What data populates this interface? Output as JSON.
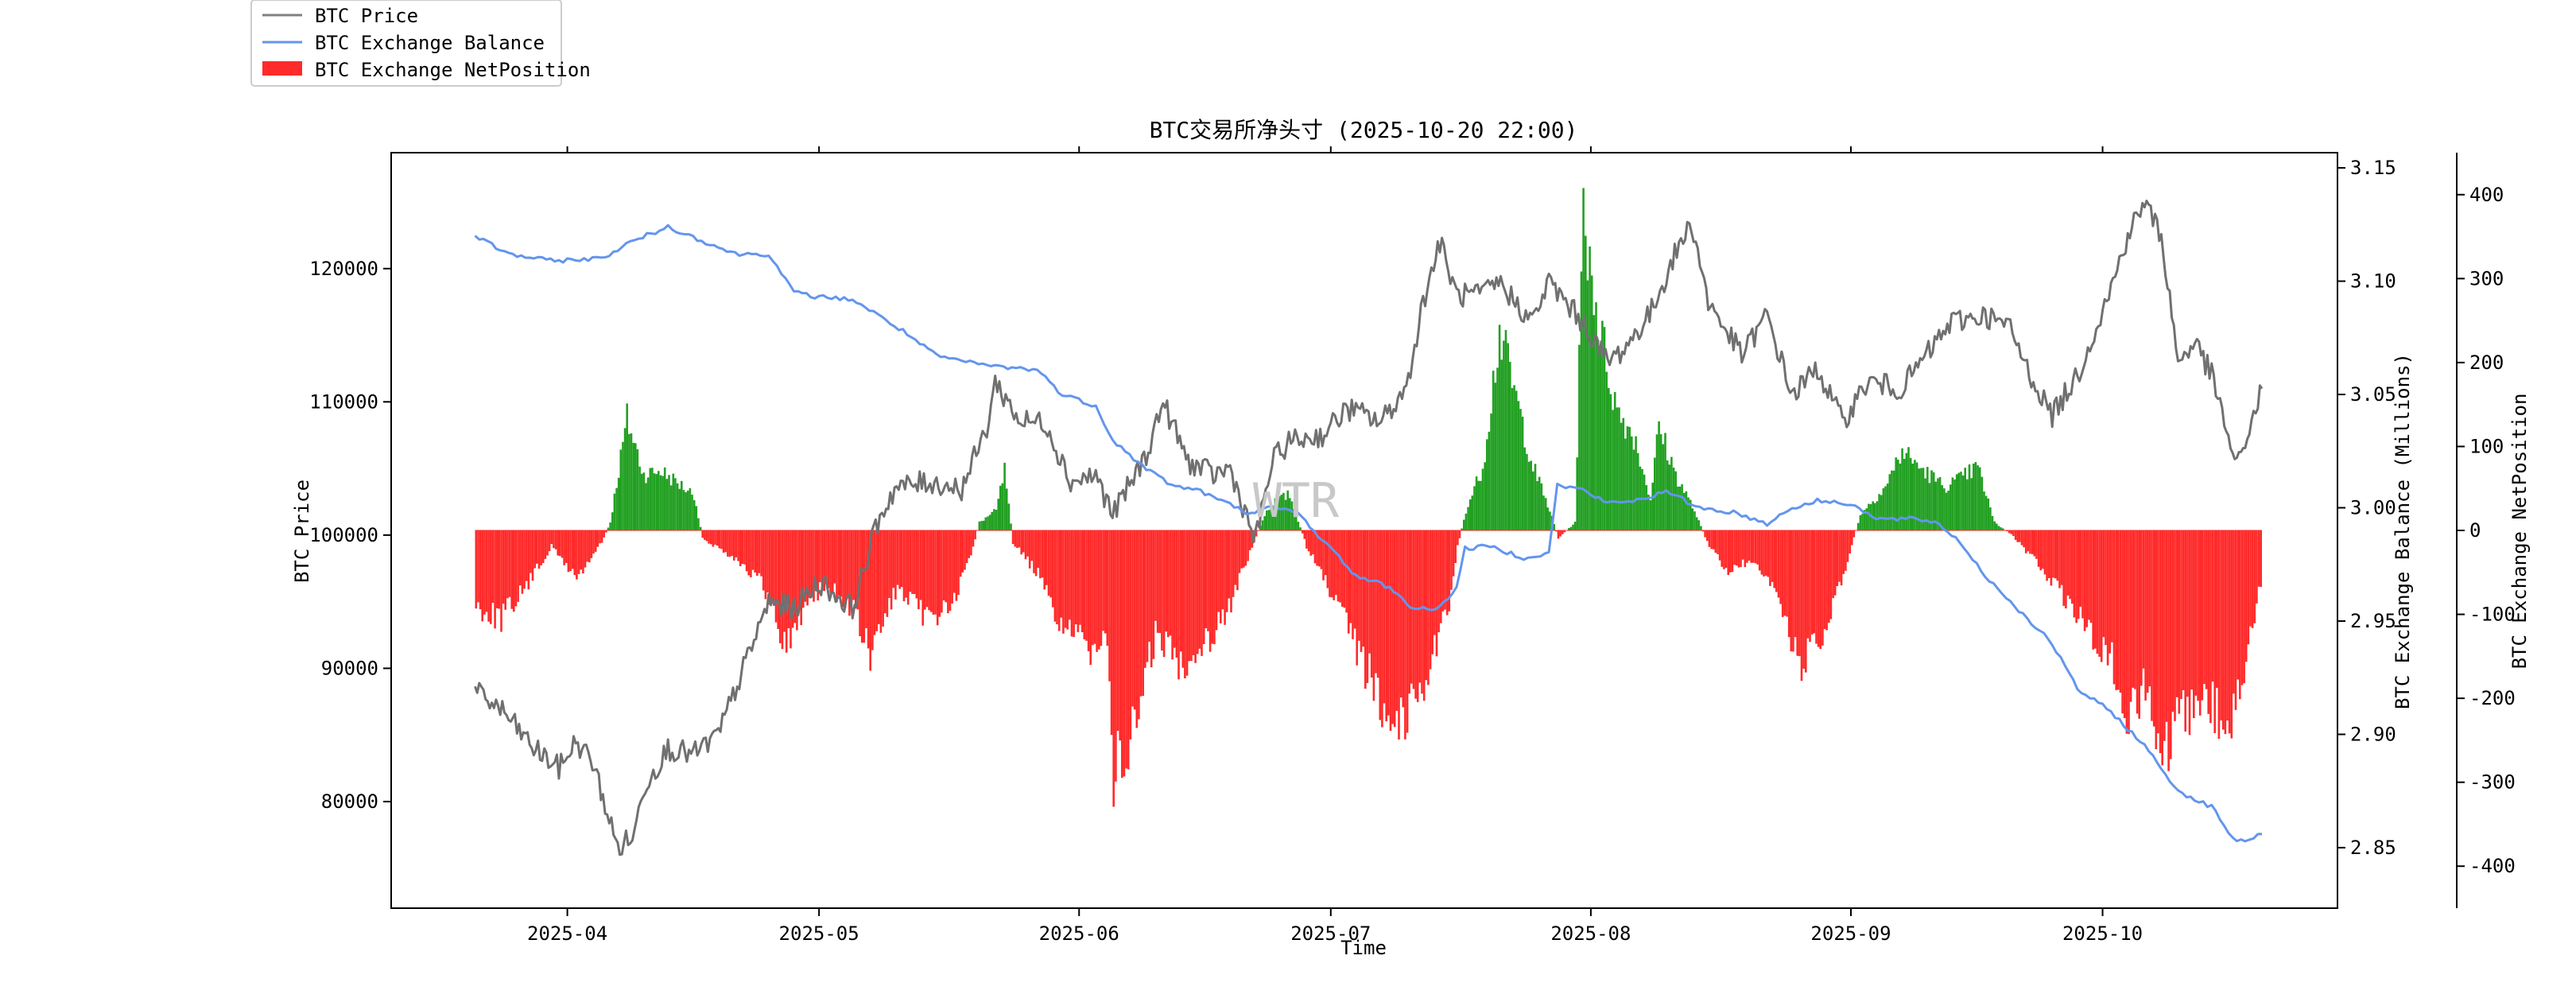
{
  "chart_data": {
    "type": "line",
    "title": "BTC交易所净头寸 (2025-10-20 22:00)",
    "xlabel": "Time",
    "ylabel_left": "BTC Price",
    "ylabel_right": "BTC Exchange Balance (Millions)",
    "ylabel_far_right": "BTC Exchange NetPosition",
    "watermark": "WTR",
    "grid": false,
    "legend_position": "top-left (outside plot)",
    "legend": [
      {
        "label": "BTC Price",
        "color": "#808080",
        "kind": "line"
      },
      {
        "label": "BTC Exchange Balance",
        "color": "#6495ed",
        "kind": "line"
      },
      {
        "label": "BTC Exchange NetPosition",
        "color": "#ff2a2a",
        "kind": "bar"
      }
    ],
    "x_ticks": [
      "2025-04",
      "2025-05",
      "2025-06",
      "2025-07",
      "2025-08",
      "2025-09",
      "2025-10"
    ],
    "x_tick_dates": [
      "2025-04-01",
      "2025-05-01",
      "2025-06-01",
      "2025-07-01",
      "2025-08-01",
      "2025-09-01",
      "2025-10-01"
    ],
    "xlim": [
      "2025-03-11",
      "2025-10-29"
    ],
    "y_left": {
      "lim": [
        72000,
        128700
      ],
      "ticks": [
        80000,
        90000,
        100000,
        110000,
        120000
      ]
    },
    "y_right": {
      "lim": [
        2.8233,
        3.1567
      ],
      "ticks": [
        2.85,
        2.9,
        2.95,
        3.0,
        3.05,
        3.1,
        3.15
      ],
      "tick_labels": [
        "2.85",
        "2.90",
        "2.95",
        "3.00",
        "3.05",
        "3.10",
        "3.15"
      ]
    },
    "y_far_right": {
      "lim": [
        -450,
        450
      ],
      "ticks": [
        -400,
        -300,
        -200,
        -100,
        0,
        100,
        200,
        300,
        400
      ]
    },
    "series": [
      {
        "name": "BTC Price",
        "axis": "left",
        "color": "#808080",
        "points": [
          [
            "2025-03-21",
            88200
          ],
          [
            "2025-03-24",
            87000
          ],
          [
            "2025-03-28",
            84000
          ],
          [
            "2025-03-31",
            82500
          ],
          [
            "2025-04-02",
            84500
          ],
          [
            "2025-04-04",
            83000
          ],
          [
            "2025-04-07",
            76500
          ],
          [
            "2025-04-09",
            77500
          ],
          [
            "2025-04-10",
            81000
          ],
          [
            "2025-04-13",
            84000
          ],
          [
            "2025-04-16",
            83500
          ],
          [
            "2025-04-19",
            85000
          ],
          [
            "2025-04-22",
            90000
          ],
          [
            "2025-04-25",
            95000
          ],
          [
            "2025-04-28",
            94500
          ],
          [
            "2025-05-01",
            96500
          ],
          [
            "2025-05-05",
            94500
          ],
          [
            "2025-05-08",
            101000
          ],
          [
            "2025-05-10",
            103500
          ],
          [
            "2025-05-14",
            104000
          ],
          [
            "2025-05-18",
            103500
          ],
          [
            "2025-05-21",
            108000
          ],
          [
            "2025-05-22",
            111500
          ],
          [
            "2025-05-25",
            108500
          ],
          [
            "2025-05-28",
            108500
          ],
          [
            "2025-05-31",
            104000
          ],
          [
            "2025-06-03",
            104500
          ],
          [
            "2025-06-05",
            101500
          ],
          [
            "2025-06-09",
            106000
          ],
          [
            "2025-06-11",
            110000
          ],
          [
            "2025-06-14",
            105500
          ],
          [
            "2025-06-17",
            104500
          ],
          [
            "2025-06-19",
            105000
          ],
          [
            "2025-06-22",
            99500
          ],
          [
            "2025-06-24",
            105500
          ],
          [
            "2025-06-26",
            107000
          ],
          [
            "2025-06-30",
            107500
          ],
          [
            "2025-07-03",
            109500
          ],
          [
            "2025-07-07",
            108500
          ],
          [
            "2025-07-10",
            111000
          ],
          [
            "2025-07-12",
            117500
          ],
          [
            "2025-07-14",
            122000
          ],
          [
            "2025-07-16",
            118000
          ],
          [
            "2025-07-19",
            118000
          ],
          [
            "2025-07-21",
            119000
          ],
          [
            "2025-07-25",
            116000
          ],
          [
            "2025-07-27",
            119000
          ],
          [
            "2025-07-31",
            116000
          ],
          [
            "2025-08-03",
            113000
          ],
          [
            "2025-08-05",
            114000
          ],
          [
            "2025-08-08",
            116500
          ],
          [
            "2025-08-11",
            121000
          ],
          [
            "2025-08-13",
            123500
          ],
          [
            "2025-08-15",
            117500
          ],
          [
            "2025-08-19",
            113500
          ],
          [
            "2025-08-22",
            116500
          ],
          [
            "2025-08-25",
            110500
          ],
          [
            "2025-08-28",
            112500
          ],
          [
            "2025-08-31",
            108500
          ],
          [
            "2025-09-03",
            111500
          ],
          [
            "2025-09-07",
            111000
          ],
          [
            "2025-09-10",
            113500
          ],
          [
            "2025-09-13",
            116000
          ],
          [
            "2025-09-17",
            116500
          ],
          [
            "2025-09-20",
            115500
          ],
          [
            "2025-09-22",
            112500
          ],
          [
            "2025-09-25",
            109000
          ],
          [
            "2025-09-28",
            112000
          ],
          [
            "2025-10-02",
            118500
          ],
          [
            "2025-10-04",
            122500
          ],
          [
            "2025-10-06",
            125000
          ],
          [
            "2025-10-08",
            122500
          ],
          [
            "2025-10-10",
            113000
          ],
          [
            "2025-10-12",
            114500
          ],
          [
            "2025-10-14",
            112000
          ],
          [
            "2025-10-17",
            105000
          ],
          [
            "2025-10-18",
            107000
          ],
          [
            "2025-10-20",
            111000
          ]
        ]
      },
      {
        "name": "BTC Exchange Balance",
        "axis": "right",
        "color": "#6495ed",
        "points": [
          [
            "2025-03-21",
            3.12
          ],
          [
            "2025-03-25",
            3.112
          ],
          [
            "2025-03-30",
            3.109
          ],
          [
            "2025-04-05",
            3.11
          ],
          [
            "2025-04-09",
            3.118
          ],
          [
            "2025-04-13",
            3.124
          ],
          [
            "2025-04-17",
            3.118
          ],
          [
            "2025-04-21",
            3.112
          ],
          [
            "2025-04-25",
            3.112
          ],
          [
            "2025-04-28",
            3.095
          ],
          [
            "2025-05-01",
            3.093
          ],
          [
            "2025-05-05",
            3.092
          ],
          [
            "2025-05-08",
            3.085
          ],
          [
            "2025-05-11",
            3.078
          ],
          [
            "2025-05-15",
            3.067
          ],
          [
            "2025-05-19",
            3.064
          ],
          [
            "2025-05-23",
            3.062
          ],
          [
            "2025-05-27",
            3.061
          ],
          [
            "2025-05-30",
            3.05
          ],
          [
            "2025-06-03",
            3.045
          ],
          [
            "2025-06-05",
            3.03
          ],
          [
            "2025-06-08",
            3.02
          ],
          [
            "2025-06-12",
            3.01
          ],
          [
            "2025-06-15",
            3.008
          ],
          [
            "2025-06-18",
            3.003
          ],
          [
            "2025-06-21",
            2.998
          ],
          [
            "2025-06-24",
            3.0
          ],
          [
            "2025-06-27",
            2.998
          ],
          [
            "2025-07-01",
            2.982
          ],
          [
            "2025-07-04",
            2.97
          ],
          [
            "2025-07-08",
            2.965
          ],
          [
            "2025-07-11",
            2.955
          ],
          [
            "2025-07-14",
            2.956
          ],
          [
            "2025-07-16",
            2.965
          ],
          [
            "2025-07-17",
            2.982
          ],
          [
            "2025-07-20",
            2.983
          ],
          [
            "2025-07-24",
            2.978
          ],
          [
            "2025-07-27",
            2.98
          ],
          [
            "2025-07-28",
            3.01
          ],
          [
            "2025-07-31",
            3.008
          ],
          [
            "2025-08-03",
            3.002
          ],
          [
            "2025-08-06",
            3.003
          ],
          [
            "2025-08-10",
            3.007
          ],
          [
            "2025-08-14",
            3.0
          ],
          [
            "2025-08-18",
            2.998
          ],
          [
            "2025-08-22",
            2.993
          ],
          [
            "2025-08-25",
            3.0
          ],
          [
            "2025-08-28",
            3.003
          ],
          [
            "2025-09-01",
            3.002
          ],
          [
            "2025-09-04",
            2.995
          ],
          [
            "2025-09-08",
            2.995
          ],
          [
            "2025-09-11",
            2.994
          ],
          [
            "2025-09-14",
            2.985
          ],
          [
            "2025-09-17",
            2.97
          ],
          [
            "2025-09-21",
            2.955
          ],
          [
            "2025-09-25",
            2.94
          ],
          [
            "2025-09-28",
            2.92
          ],
          [
            "2025-10-02",
            2.91
          ],
          [
            "2025-10-06",
            2.895
          ],
          [
            "2025-10-10",
            2.875
          ],
          [
            "2025-10-14",
            2.868
          ],
          [
            "2025-10-17",
            2.852
          ],
          [
            "2025-10-20",
            2.856
          ]
        ]
      },
      {
        "name": "BTC Exchange NetPosition",
        "axis": "far_right",
        "type": "bar",
        "color_positive": "#22a022",
        "color_negative": "#ff2a2a",
        "points": [
          [
            "2025-03-21",
            -95
          ],
          [
            "2025-03-24",
            -110
          ],
          [
            "2025-03-27",
            -70
          ],
          [
            "2025-03-30",
            -20
          ],
          [
            "2025-04-02",
            -60
          ],
          [
            "2025-04-05",
            -15
          ],
          [
            "2025-04-06",
            10
          ],
          [
            "2025-04-08",
            140
          ],
          [
            "2025-04-10",
            70
          ],
          [
            "2025-04-12",
            75
          ],
          [
            "2025-04-14",
            60
          ],
          [
            "2025-04-16",
            45
          ],
          [
            "2025-04-17",
            -10
          ],
          [
            "2025-04-21",
            -35
          ],
          [
            "2025-04-24",
            -65
          ],
          [
            "2025-04-27",
            -145
          ],
          [
            "2025-04-30",
            -80
          ],
          [
            "2025-05-02",
            -70
          ],
          [
            "2025-05-05",
            -100
          ],
          [
            "2025-05-07",
            -160
          ],
          [
            "2025-05-10",
            -75
          ],
          [
            "2025-05-14",
            -110
          ],
          [
            "2025-05-17",
            -90
          ],
          [
            "2025-05-19",
            -30
          ],
          [
            "2025-05-20",
            10
          ],
          [
            "2025-05-22",
            25
          ],
          [
            "2025-05-23",
            75
          ],
          [
            "2025-05-24",
            -15
          ],
          [
            "2025-05-27",
            -55
          ],
          [
            "2025-05-29",
            -105
          ],
          [
            "2025-05-31",
            -130
          ],
          [
            "2025-06-02",
            -150
          ],
          [
            "2025-06-04",
            -120
          ],
          [
            "2025-06-05",
            -305
          ],
          [
            "2025-06-07",
            -270
          ],
          [
            "2025-06-10",
            -130
          ],
          [
            "2025-06-13",
            -165
          ],
          [
            "2025-06-16",
            -140
          ],
          [
            "2025-06-19",
            -90
          ],
          [
            "2025-06-21",
            -35
          ],
          [
            "2025-06-23",
            20
          ],
          [
            "2025-06-24",
            35
          ],
          [
            "2025-06-26",
            45
          ],
          [
            "2025-06-28",
            -20
          ],
          [
            "2025-07-01",
            -80
          ],
          [
            "2025-07-04",
            -150
          ],
          [
            "2025-07-07",
            -215
          ],
          [
            "2025-07-09",
            -240
          ],
          [
            "2025-07-12",
            -190
          ],
          [
            "2025-07-15",
            -90
          ],
          [
            "2025-07-16",
            -20
          ],
          [
            "2025-07-17",
            25
          ],
          [
            "2025-07-19",
            80
          ],
          [
            "2025-07-21",
            250
          ],
          [
            "2025-07-23",
            165
          ],
          [
            "2025-07-25",
            80
          ],
          [
            "2025-07-27",
            25
          ],
          [
            "2025-07-28",
            -10
          ],
          [
            "2025-07-30",
            10
          ],
          [
            "2025-07-31",
            400
          ],
          [
            "2025-08-02",
            250
          ],
          [
            "2025-08-04",
            150
          ],
          [
            "2025-08-06",
            120
          ],
          [
            "2025-08-08",
            40
          ],
          [
            "2025-08-09",
            130
          ],
          [
            "2025-08-11",
            70
          ],
          [
            "2025-08-13",
            30
          ],
          [
            "2025-08-15",
            -20
          ],
          [
            "2025-08-17",
            -50
          ],
          [
            "2025-08-20",
            -40
          ],
          [
            "2025-08-23",
            -80
          ],
          [
            "2025-08-26",
            -170
          ],
          [
            "2025-08-29",
            -125
          ],
          [
            "2025-09-01",
            -20
          ],
          [
            "2025-09-02",
            20
          ],
          [
            "2025-09-05",
            55
          ],
          [
            "2025-09-07",
            100
          ],
          [
            "2025-09-09",
            80
          ],
          [
            "2025-09-12",
            55
          ],
          [
            "2025-09-14",
            65
          ],
          [
            "2025-09-16",
            80
          ],
          [
            "2025-09-18",
            10
          ],
          [
            "2025-09-20",
            -5
          ],
          [
            "2025-09-23",
            -40
          ],
          [
            "2025-09-26",
            -80
          ],
          [
            "2025-09-29",
            -120
          ],
          [
            "2025-10-02",
            -165
          ],
          [
            "2025-10-04",
            -240
          ],
          [
            "2025-10-06",
            -190
          ],
          [
            "2025-10-08",
            -300
          ],
          [
            "2025-10-10",
            -240
          ],
          [
            "2025-10-13",
            -205
          ],
          [
            "2025-10-16",
            -245
          ],
          [
            "2025-10-18",
            -170
          ],
          [
            "2025-10-20",
            -50
          ]
        ]
      }
    ]
  }
}
